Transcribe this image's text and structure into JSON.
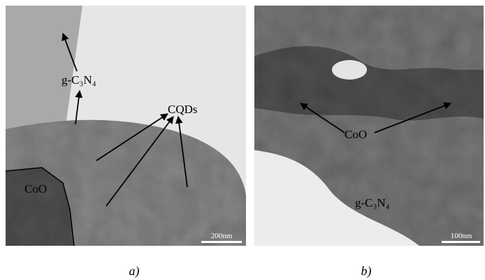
{
  "panels": [
    {
      "labels": [
        "g-C₃N₄",
        "CQDs",
        "CoO"
      ],
      "scale_bar": "200nm",
      "caption": "a)"
    },
    {
      "labels": [
        "CoO",
        "g-C₃N₄"
      ],
      "scale_bar": "100nm",
      "caption": "b)"
    }
  ]
}
